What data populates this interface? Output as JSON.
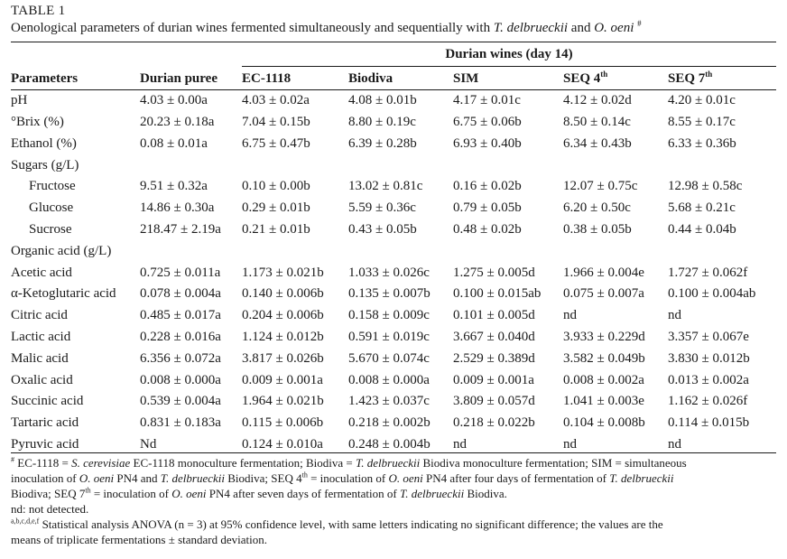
{
  "table_label": "TABLE 1",
  "caption": {
    "before": "Oenological parameters of durian wines fermented simultaneously and sequentially with ",
    "species1": "T. delbrueckii",
    "middle": " and ",
    "species2": "O. oeni",
    "mark": "#"
  },
  "group_header": "Durian wines (day 14)",
  "columns": {
    "parameters": "Parameters",
    "puree": "Durian puree",
    "ec": "EC-1118",
    "biodiva": "Biodiva",
    "sim": "SIM",
    "seq4": "SEQ 4",
    "seq4_sup": "th",
    "seq7": "SEQ 7",
    "seq7_sup": "th"
  },
  "rows": [
    {
      "label": "pH",
      "values": [
        "4.03 ± 0.00a",
        "4.03 ± 0.02a",
        "4.08 ± 0.01b",
        "4.17 ± 0.01c",
        "4.12 ± 0.02d",
        "4.20 ± 0.01c"
      ]
    },
    {
      "label": "°Brix (%)",
      "values": [
        "20.23 ± 0.18a",
        "7.04 ± 0.15b",
        "8.80 ± 0.19c",
        "6.75 ± 0.06b",
        "8.50 ± 0.14c",
        "8.55 ± 0.17c"
      ]
    },
    {
      "label": "Ethanol (%)",
      "values": [
        "0.08 ± 0.01a",
        "6.75 ± 0.47b",
        "6.39 ± 0.28b",
        "6.93 ± 0.40b",
        "6.34 ± 0.43b",
        "6.33 ± 0.36b"
      ]
    },
    {
      "label": "Sugars (g/L)",
      "values": [
        "",
        "",
        "",
        "",
        "",
        ""
      ]
    },
    {
      "label": "Fructose",
      "indent": true,
      "values": [
        "9.51 ± 0.32a",
        "0.10 ± 0.00b",
        "13.02 ± 0.81c",
        "0.16 ± 0.02b",
        "12.07 ± 0.75c",
        "12.98 ± 0.58c"
      ]
    },
    {
      "label": "Glucose",
      "indent": true,
      "values": [
        "14.86 ± 0.30a",
        "0.29 ± 0.01b",
        "5.59 ± 0.36c",
        "0.79 ± 0.05b",
        "6.20 ± 0.50c",
        "5.68 ± 0.21c"
      ]
    },
    {
      "label": "Sucrose",
      "indent": true,
      "values": [
        "218.47 ± 2.19a",
        "0.21 ± 0.01b",
        "0.43 ± 0.05b",
        "0.48 ± 0.02b",
        "0.38 ± 0.05b",
        "0.44 ± 0.04b"
      ]
    },
    {
      "label": "Organic acid (g/L)",
      "values": [
        "",
        "",
        "",
        "",
        "",
        ""
      ]
    },
    {
      "label": "Acetic acid",
      "values": [
        "0.725 ± 0.011a",
        "1.173 ± 0.021b",
        "1.033 ± 0.026c",
        "1.275 ± 0.005d",
        "1.966 ± 0.004e",
        "1.727 ± 0.062f"
      ]
    },
    {
      "label": "α-Ketoglutaric acid",
      "values": [
        "0.078 ± 0.004a",
        "0.140 ± 0.006b",
        "0.135 ± 0.007b",
        "0.100 ± 0.015ab",
        "0.075 ± 0.007a",
        "0.100 ± 0.004ab"
      ]
    },
    {
      "label": "Citric acid",
      "values": [
        "0.485 ± 0.017a",
        "0.204 ± 0.006b",
        "0.158 ± 0.009c",
        "0.101 ± 0.005d",
        "nd",
        "nd"
      ]
    },
    {
      "label": "Lactic acid",
      "values": [
        "0.228 ± 0.016a",
        "1.124 ± 0.012b",
        "0.591 ± 0.019c",
        "3.667 ± 0.040d",
        "3.933 ± 0.229d",
        "3.357 ± 0.067e"
      ]
    },
    {
      "label": "Malic acid",
      "values": [
        "6.356 ± 0.072a",
        "3.817 ± 0.026b",
        "5.670 ± 0.074c",
        "2.529 ± 0.389d",
        "3.582 ± 0.049b",
        "3.830 ± 0.012b"
      ]
    },
    {
      "label": "Oxalic acid",
      "values": [
        "0.008 ± 0.000a",
        "0.009 ± 0.001a",
        "0.008 ± 0.000a",
        "0.009 ± 0.001a",
        "0.008 ± 0.002a",
        "0.013 ± 0.002a"
      ]
    },
    {
      "label": "Succinic acid",
      "values": [
        "0.539 ± 0.004a",
        "1.964 ± 0.021b",
        "1.423 ± 0.037c",
        "3.809 ± 0.057d",
        "1.041 ± 0.003e",
        "1.162 ± 0.026f"
      ]
    },
    {
      "label": "Tartaric acid",
      "values": [
        "0.831 ± 0.183a",
        "0.115 ± 0.006b",
        "0.218 ± 0.002b",
        "0.218 ± 0.022b",
        "0.104 ± 0.008b",
        "0.114 ± 0.015b"
      ]
    },
    {
      "label": "Pyruvic acid",
      "values": [
        "Nd",
        "0.124 ± 0.010a",
        "0.248 ± 0.004b",
        "nd",
        "nd",
        "nd"
      ]
    }
  ],
  "footnotes": {
    "f1_mark": "#",
    "f1_a": " EC-1118 = ",
    "f1_b": "S. cerevisiae",
    "f1_c": " EC-1118 monoculture fermentation; Biodiva = ",
    "f1_d": "T. delbrueckii",
    "f1_e": " Biodiva monoculture fermentation; SIM = simultaneous",
    "f2_a": "inoculation of ",
    "f2_b": "O. oeni",
    "f2_c": " PN4 and ",
    "f2_d": "T. delbrueckii",
    "f2_e": " Biodiva; SEQ 4",
    "f2_sup": "th",
    "f2_f": " = inoculation of ",
    "f2_g": "O. oeni",
    "f2_h": " PN4 after four days of fermentation of ",
    "f2_i": "T. delbrueckii",
    "f3_a": "Biodiva; SEQ 7",
    "f3_sup": "th",
    "f3_b": " = inoculation of ",
    "f3_c": "O. oeni",
    "f3_d": " PN4 after seven days of fermentation of ",
    "f3_e": "T. delbrueckii",
    "f3_f": " Biodiva.",
    "nd": "nd: not detected.",
    "stat_mark": "a,b,c,d,e,f",
    "stat_a": " Statistical analysis ANOVA (n = 3) at 95% confidence level, with same letters indicating no significant difference; the values are the",
    "stat_b": "means of triplicate fermentations ± standard deviation."
  }
}
